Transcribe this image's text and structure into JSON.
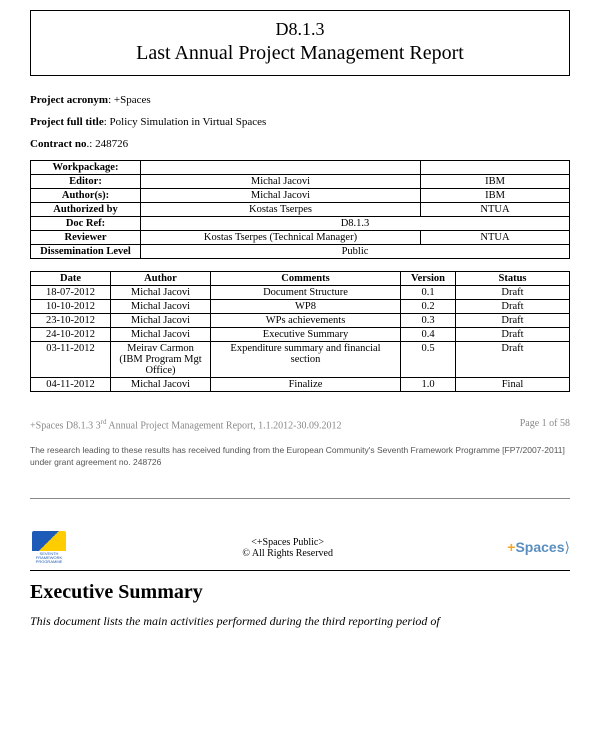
{
  "title": {
    "code": "D8.1.3",
    "main": "Last Annual Project Management Report"
  },
  "meta": {
    "acronym_label": "Project acronym",
    "acronym_value": ": +Spaces",
    "full_label": "Project full title",
    "full_value": ":  Policy Simulation in Virtual Spaces",
    "contract_label": "Contract no",
    "contract_value": ".: 248726"
  },
  "info": {
    "workpackage_label": "Workpackage:",
    "editor_label": "Editor:",
    "editor_name": "Michal Jacovi",
    "editor_org": "IBM",
    "authors_label": "Author(s):",
    "authors_name": "Michal Jacovi",
    "authors_org": "IBM",
    "authorized_label": "Authorized by",
    "authorized_name": "Kostas Tserpes",
    "authorized_org": "NTUA",
    "docref_label": "Doc Ref:",
    "docref_value": "D8.1.3",
    "reviewer_label": "Reviewer",
    "reviewer_name": "Kostas Tserpes (Technical Manager)",
    "reviewer_org": "NTUA",
    "dissem_label": "Dissemination Level",
    "dissem_value": "Public"
  },
  "hist_head": {
    "date": "Date",
    "author": "Author",
    "comments": "Comments",
    "version": "Version",
    "status": "Status"
  },
  "hist": [
    {
      "date": "18-07-2012",
      "author": "Michal Jacovi",
      "comments": "Document Structure",
      "version": "0.1",
      "status": "Draft"
    },
    {
      "date": "10-10-2012",
      "author": "Michal Jacovi",
      "comments": "WP8",
      "version": "0.2",
      "status": "Draft"
    },
    {
      "date": "23-10-2012",
      "author": "Michal Jacovi",
      "comments": "WPs achievements",
      "version": "0.3",
      "status": "Draft"
    },
    {
      "date": "24-10-2012",
      "author": "Michal Jacovi",
      "comments": "Executive Summary",
      "version": "0.4",
      "status": "Draft"
    },
    {
      "date": "03-11-2012",
      "author": "Meirav Carmon (IBM Program Mgt Office)",
      "comments": "Expenditure summary and financial section",
      "version": "0.5",
      "status": "Draft"
    },
    {
      "date": "04-11-2012",
      "author": "Michal Jacovi",
      "comments": "Finalize",
      "version": "1.0",
      "status": "Final"
    }
  ],
  "footer": {
    "left_pre": "+Spaces D8.1.3 3",
    "left_sup": "rd",
    "left_post": " Annual Project Management Report, 1.1.2012-30.09.2012",
    "page": "Page 1 of 58"
  },
  "funding": "The research leading to these results has received funding from the European Community's Seventh Framework Programme [FP7/2007-2011] under grant agreement no. 248726",
  "fp7_caption": "SEVENTH FRAMEWORK PROGRAMME",
  "center_foot": {
    "l1": "<+Spaces Public>",
    "l2": "© All Rights Reserved"
  },
  "spaces_logo": {
    "plus": "+",
    "text": "Spaces"
  },
  "exec": {
    "heading": "Executive Summary",
    "body": "This document lists the main activities performed during the third reporting period of"
  }
}
